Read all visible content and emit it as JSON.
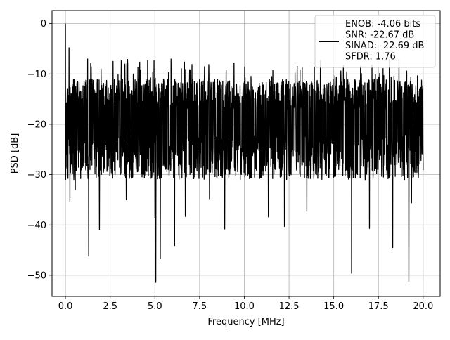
{
  "chart_data": {
    "type": "line",
    "title": "",
    "xlabel": "Frequency [MHz]",
    "ylabel": "PSD [dB]",
    "xlim": [
      -0.75,
      20.95
    ],
    "ylim": [
      -54.2,
      2.6
    ],
    "xticks": [
      0.0,
      2.5,
      5.0,
      7.5,
      10.0,
      12.5,
      15.0,
      17.5,
      20.0
    ],
    "xtick_labels": [
      "0.0",
      "2.5",
      "5.0",
      "7.5",
      "10.0",
      "12.5",
      "15.0",
      "17.5",
      "20.0"
    ],
    "yticks": [
      0,
      -10,
      -20,
      -30,
      -40,
      -50
    ],
    "ytick_labels": [
      "0",
      "−10",
      "−20",
      "−30",
      "−40",
      "−50"
    ],
    "grid": true,
    "legend_position": "top-right",
    "legend_lines": [
      "ENOB: -4.06 bits",
      "SNR: -22.67 dB",
      "SINAD: -22.69 dB",
      "SFDR: 1.76"
    ],
    "series": [
      {
        "name": "ENOB: -4.06 bits\nSNR: -22.67 dB\nSINAD: -22.69 dB\nSFDR: 1.76",
        "color": "#000000",
        "x_start": 0.0,
        "x_end": 20.0,
        "points": 2000,
        "noise_floor_db": -19.0,
        "upper_envelope_db": -11.0,
        "peaks": [
          {
            "x": 0.0,
            "y": 0.0
          },
          {
            "x": 0.06,
            "y": -26.0
          },
          {
            "x": 0.2,
            "y": -4.8
          }
        ],
        "dips": [
          {
            "x": 0.25,
            "y": -35.3
          },
          {
            "x": 0.55,
            "y": -33.0
          },
          {
            "x": 1.3,
            "y": -46.2
          },
          {
            "x": 1.9,
            "y": -40.9
          },
          {
            "x": 3.4,
            "y": -35.0
          },
          {
            "x": 5.0,
            "y": -38.6
          },
          {
            "x": 5.05,
            "y": -51.4
          },
          {
            "x": 5.3,
            "y": -46.7
          },
          {
            "x": 6.1,
            "y": -44.1
          },
          {
            "x": 6.7,
            "y": -38.3
          },
          {
            "x": 8.05,
            "y": -34.8
          },
          {
            "x": 8.9,
            "y": -40.8
          },
          {
            "x": 11.35,
            "y": -38.4
          },
          {
            "x": 12.25,
            "y": -40.3
          },
          {
            "x": 13.5,
            "y": -37.3
          },
          {
            "x": 16.0,
            "y": -49.6
          },
          {
            "x": 17.0,
            "y": -40.7
          },
          {
            "x": 18.3,
            "y": -44.5
          },
          {
            "x": 19.2,
            "y": -51.3
          },
          {
            "x": 19.35,
            "y": -35.6
          }
        ]
      }
    ]
  }
}
